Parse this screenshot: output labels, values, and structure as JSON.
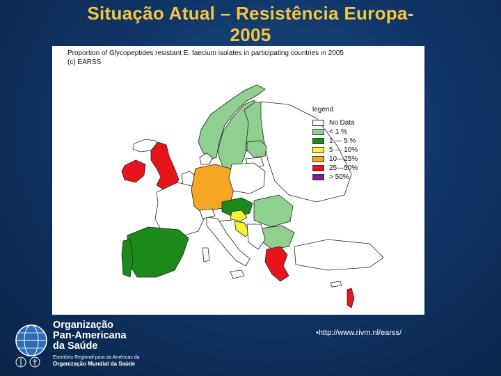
{
  "slide": {
    "title_line1": "Situação Atual – Resistência Europa-",
    "title_line2": "2005"
  },
  "map": {
    "caption_line1": "Proportion of Glycopeptides resistant E. faecium isolates in participating countries in 2005",
    "caption_line2": "(c) EARSS",
    "legend_title": "legend",
    "legend": [
      {
        "label": "No Data",
        "color": "#ffffff"
      },
      {
        "label": "<  1 %",
        "color": "#8fcf8f"
      },
      {
        "label": "1  — 5 %",
        "color": "#1b8a1b"
      },
      {
        "label": "5  — 10%",
        "color": "#f4f430"
      },
      {
        "label": "10—25%",
        "color": "#f5a623"
      },
      {
        "label": "25—50%",
        "color": "#e8141b"
      },
      {
        "label": ">  50%",
        "color": "#7a1f8c"
      }
    ]
  },
  "footer": {
    "url": "•http://www.rivm.nl/earss/"
  },
  "organization": {
    "line1": "Organização",
    "line2": "Pan-Americana",
    "line3": "da Saúde",
    "sub1": "Escritório Regional para as Américas da",
    "sub2": "Organização Mundial da Saúde"
  }
}
